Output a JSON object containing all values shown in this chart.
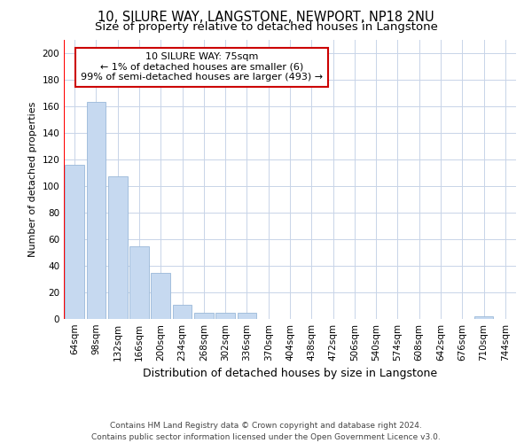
{
  "title_line1": "10, SILURE WAY, LANGSTONE, NEWPORT, NP18 2NU",
  "title_line2": "Size of property relative to detached houses in Langstone",
  "xlabel": "Distribution of detached houses by size in Langstone",
  "ylabel": "Number of detached properties",
  "categories": [
    "64sqm",
    "98sqm",
    "132sqm",
    "166sqm",
    "200sqm",
    "234sqm",
    "268sqm",
    "302sqm",
    "336sqm",
    "370sqm",
    "404sqm",
    "438sqm",
    "472sqm",
    "506sqm",
    "540sqm",
    "574sqm",
    "608sqm",
    "642sqm",
    "676sqm",
    "710sqm",
    "744sqm"
  ],
  "values": [
    116,
    163,
    107,
    55,
    35,
    11,
    5,
    5,
    5,
    0,
    0,
    0,
    0,
    0,
    0,
    0,
    0,
    0,
    0,
    2,
    0
  ],
  "bar_color": "#c6d9f0",
  "bar_edge_color": "#9ab8d8",
  "annotation_text": "10 SILURE WAY: 75sqm\n← 1% of detached houses are smaller (6)\n99% of semi-detached houses are larger (493) →",
  "ylim": [
    0,
    210
  ],
  "yticks": [
    0,
    20,
    40,
    60,
    80,
    100,
    120,
    140,
    160,
    180,
    200
  ],
  "footnote": "Contains HM Land Registry data © Crown copyright and database right 2024.\nContains public sector information licensed under the Open Government Licence v3.0.",
  "background_color": "#ffffff",
  "grid_color": "#c8d4e8",
  "ann_box_color": "#cc0000",
  "title_fontsize": 10.5,
  "subtitle_fontsize": 9.5,
  "tick_fontsize": 7.5,
  "xlabel_fontsize": 9,
  "ylabel_fontsize": 8,
  "ann_fontsize": 8,
  "footnote_fontsize": 6.5
}
